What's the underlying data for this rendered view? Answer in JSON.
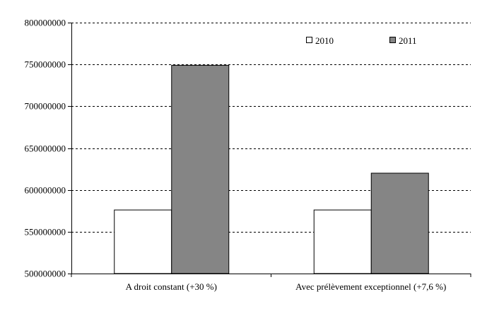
{
  "chart_data": {
    "type": "bar",
    "categories": [
      "A droit constant (+30 %)",
      "Avec prélèvement exceptionnel (+7,6 %)"
    ],
    "series": [
      {
        "name": "2010",
        "values": [
          576000000,
          576000000
        ],
        "color": "#ffffff"
      },
      {
        "name": "2011",
        "values": [
          749000000,
          620000000
        ],
        "color": "#858585"
      }
    ],
    "yticks": [
      "500000000",
      "550000000",
      "600000000",
      "650000000",
      "700000000",
      "750000000",
      "800000000"
    ],
    "ylim": [
      500000000,
      800000000
    ],
    "grid": true,
    "legend": "top-right"
  }
}
